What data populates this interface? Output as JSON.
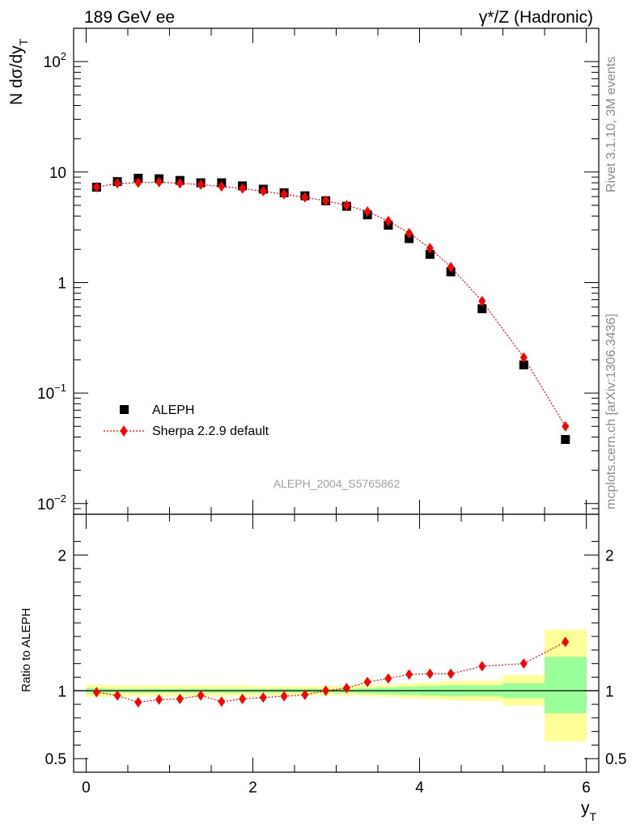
{
  "header": {
    "left": "189 GeV ee",
    "right": "γ*/Z (Hadronic)"
  },
  "side_text": {
    "top": "Rivet 3.1.10,  3M events",
    "bottom": "mcplots.cern.ch [arXiv:1306.3436]"
  },
  "watermark": "ALEPH_2004_S5765862",
  "colors": {
    "data": "#000000",
    "mc": "#ff0000",
    "band_inner": "#99ff99",
    "band_outer": "#ffff99"
  },
  "chart_data": [
    {
      "type": "scatter",
      "panel": "main",
      "ylabel_main": "N dσ/dy",
      "ylabel_sub": "T",
      "yscale": "log",
      "ylim": [
        0.008,
        200
      ],
      "xlim": [
        -0.15,
        6.15
      ],
      "x": [
        0.125,
        0.375,
        0.625,
        0.875,
        1.125,
        1.375,
        1.625,
        1.875,
        2.125,
        2.375,
        2.625,
        2.875,
        3.125,
        3.375,
        3.625,
        3.875,
        4.125,
        4.375,
        4.75,
        5.25,
        5.75
      ],
      "series": [
        {
          "name": "ALEPH",
          "marker": "square",
          "values": [
            7.3,
            8.2,
            8.8,
            8.7,
            8.4,
            8.0,
            8.0,
            7.5,
            7.0,
            6.5,
            6.1,
            5.5,
            4.9,
            4.1,
            3.3,
            2.5,
            1.8,
            1.25,
            0.58,
            0.18,
            0.038
          ]
        },
        {
          "name": "Sherpa 2.2.9 default",
          "marker": "diamond",
          "line": "dotted",
          "values": [
            7.3,
            7.9,
            8.0,
            8.1,
            7.9,
            7.7,
            7.4,
            7.1,
            6.7,
            6.3,
            5.9,
            5.5,
            5.0,
            4.4,
            3.6,
            2.8,
            2.05,
            1.38,
            0.68,
            0.21,
            0.05
          ]
        }
      ],
      "yticks": [
        {
          "value": 100,
          "base": "10",
          "exp": "2"
        },
        {
          "value": 10,
          "base": "10",
          "exp": ""
        },
        {
          "value": 1,
          "base": "1",
          "exp": ""
        },
        {
          "value": 0.1,
          "base": "10",
          "exp": "−1"
        },
        {
          "value": 0.01,
          "base": "10",
          "exp": "−2"
        }
      ]
    },
    {
      "type": "line",
      "panel": "ratio",
      "ylabel": "Ratio to ALEPH",
      "ylim": [
        0.4,
        2.3
      ],
      "yticks": [
        {
          "value": 2,
          "label": "2"
        },
        {
          "value": 1,
          "label": "1"
        },
        {
          "value": 0.5,
          "label": "0.5"
        }
      ],
      "xlabel_main": "y",
      "xlabel_sub": "T",
      "xticks": [
        0,
        2,
        4,
        6
      ],
      "x": [
        0.125,
        0.375,
        0.625,
        0.875,
        1.125,
        1.375,
        1.625,
        1.875,
        2.125,
        2.375,
        2.625,
        2.875,
        3.125,
        3.375,
        3.625,
        3.875,
        4.125,
        4.375,
        4.75,
        5.25,
        5.75
      ],
      "series": [
        {
          "name": "Sherpa 2.2.9 default",
          "values": [
            0.99,
            0.965,
            0.915,
            0.935,
            0.94,
            0.965,
            0.92,
            0.94,
            0.95,
            0.96,
            0.97,
            1.0,
            1.02,
            1.065,
            1.09,
            1.12,
            1.125,
            1.125,
            1.18,
            1.2,
            1.36
          ]
        }
      ],
      "bands": {
        "edges": [
          0.0,
          0.25,
          0.5,
          0.75,
          1.0,
          1.25,
          1.5,
          1.75,
          2.0,
          2.25,
          2.5,
          2.75,
          3.0,
          3.25,
          3.5,
          3.75,
          4.0,
          4.25,
          4.5,
          5.0,
          5.5,
          6.0
        ],
        "inner_low": [
          0.98,
          0.985,
          0.985,
          0.985,
          0.985,
          0.985,
          0.985,
          0.985,
          0.985,
          0.985,
          0.985,
          0.985,
          0.985,
          0.98,
          0.975,
          0.97,
          0.965,
          0.96,
          0.96,
          0.945,
          0.835
        ],
        "inner_high": [
          1.02,
          1.015,
          1.015,
          1.015,
          1.015,
          1.015,
          1.015,
          1.015,
          1.015,
          1.015,
          1.015,
          1.015,
          1.015,
          1.02,
          1.025,
          1.03,
          1.035,
          1.04,
          1.04,
          1.055,
          1.25
        ],
        "outer_low": [
          0.955,
          0.96,
          0.96,
          0.96,
          0.96,
          0.96,
          0.96,
          0.96,
          0.965,
          0.965,
          0.965,
          0.965,
          0.965,
          0.96,
          0.955,
          0.945,
          0.94,
          0.93,
          0.925,
          0.89,
          0.625
        ],
        "outer_high": [
          1.045,
          1.04,
          1.04,
          1.04,
          1.04,
          1.04,
          1.04,
          1.04,
          1.035,
          1.035,
          1.035,
          1.035,
          1.035,
          1.04,
          1.045,
          1.055,
          1.06,
          1.07,
          1.075,
          1.115,
          1.45
        ]
      }
    }
  ]
}
